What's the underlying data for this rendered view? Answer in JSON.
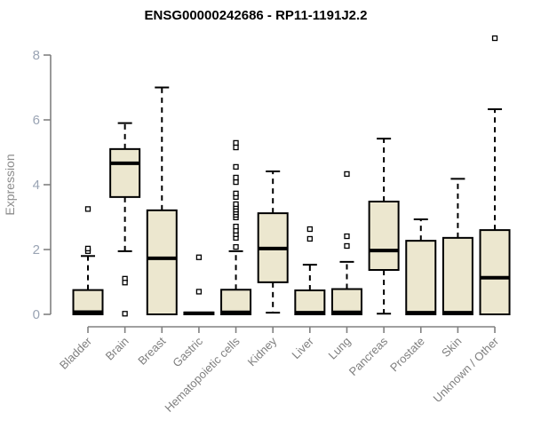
{
  "title": "ENSG00000242686 - RP11-1191J2.2",
  "colors": {
    "background": "#ffffff",
    "box_fill": "#ece7cf",
    "box_stroke": "#000000",
    "median": "#000000",
    "whisker": "#000000",
    "outlier_stroke": "#000000",
    "outlier_fill": "#ffffff",
    "axis": "#808080",
    "y_tick_label": "#9aa4b4",
    "x_tick_label": "#7f7f7f",
    "axis_title": "#8c8c8c",
    "title": "#000000"
  },
  "chart_data": {
    "type": "boxplot",
    "title": "ENSG00000242686 - RP11-1191J2.2",
    "ylabel": "Expression",
    "xlabel": "",
    "ylim": [
      0,
      8
    ],
    "yticks": [
      0,
      2,
      4,
      6,
      8
    ],
    "grid": false,
    "legend": null,
    "categories": [
      "Bladder",
      "Brain",
      "Breast",
      "Gastric",
      "Hematopoietic cells",
      "Kidney",
      "Liver",
      "Lung",
      "Pancreas",
      "Prostate",
      "Skin",
      "Unknown / Other"
    ],
    "series": [
      {
        "category": "Bladder",
        "q1": 0,
        "median": 0.07,
        "q3": 0.75,
        "whisker_low": 0,
        "whisker_high": 1.8,
        "outliers": [
          1.95,
          2.03,
          3.25
        ]
      },
      {
        "category": "Brain",
        "q1": 3.62,
        "median": 4.66,
        "q3": 5.1,
        "whisker_low": 1.95,
        "whisker_high": 5.9,
        "outliers": [
          1.1,
          0.98,
          0.02
        ]
      },
      {
        "category": "Breast",
        "q1": 0,
        "median": 1.73,
        "q3": 3.21,
        "whisker_low": 0,
        "whisker_high": 7.0,
        "outliers": []
      },
      {
        "category": "Gastric",
        "q1": 0,
        "median": 0.03,
        "q3": 0.06,
        "whisker_low": 0,
        "whisker_high": 0.06,
        "outliers": [
          0.7,
          1.76
        ]
      },
      {
        "category": "Hematopoietic cells",
        "q1": 0,
        "median": 0.06,
        "q3": 0.76,
        "whisker_low": 0,
        "whisker_high": 1.95,
        "outliers": [
          2.08,
          2.36,
          2.47,
          2.58,
          2.71,
          2.99,
          3.07,
          3.15,
          3.23,
          3.32,
          3.4,
          3.62,
          3.73,
          4.08,
          4.22,
          4.55,
          5.15,
          5.29
        ]
      },
      {
        "category": "Kidney",
        "q1": 0.99,
        "median": 2.03,
        "q3": 3.12,
        "whisker_low": 0.05,
        "whisker_high": 4.41,
        "outliers": []
      },
      {
        "category": "Liver",
        "q1": 0,
        "median": 0.05,
        "q3": 0.74,
        "whisker_low": 0,
        "whisker_high": 1.53,
        "outliers": [
          2.33,
          2.63
        ]
      },
      {
        "category": "Lung",
        "q1": 0,
        "median": 0.06,
        "q3": 0.78,
        "whisker_low": 0,
        "whisker_high": 1.62,
        "outliers": [
          2.11,
          2.41,
          4.33
        ]
      },
      {
        "category": "Pancreas",
        "q1": 1.37,
        "median": 1.97,
        "q3": 3.48,
        "whisker_low": 0.02,
        "whisker_high": 5.42,
        "outliers": []
      },
      {
        "category": "Prostate",
        "q1": 0,
        "median": 0.05,
        "q3": 2.27,
        "whisker_low": 0,
        "whisker_high": 2.93,
        "outliers": []
      },
      {
        "category": "Skin",
        "q1": 0,
        "median": 0.05,
        "q3": 2.36,
        "whisker_low": 0,
        "whisker_high": 4.18,
        "outliers": []
      },
      {
        "category": "Unknown / Other",
        "q1": 0,
        "median": 1.13,
        "q3": 2.6,
        "whisker_low": 0,
        "whisker_high": 6.33,
        "outliers": [
          8.52
        ]
      }
    ]
  }
}
